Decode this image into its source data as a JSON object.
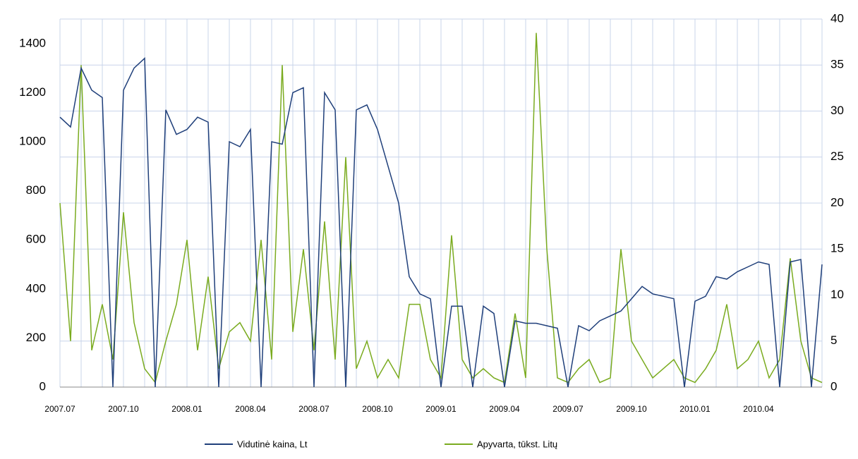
{
  "chart_data": {
    "type": "line",
    "x": [
      0,
      0.5,
      1,
      1.5,
      2,
      2.5,
      3,
      3.5,
      4,
      4.5,
      5,
      5.5,
      6,
      6.5,
      7,
      7.5,
      8,
      8.5,
      9,
      9.5,
      10,
      10.5,
      11,
      11.5,
      12,
      12.5,
      13,
      13.5,
      14,
      14.5,
      15,
      15.5,
      16,
      16.5,
      17,
      17.5,
      18,
      18.5,
      19,
      19.5,
      20,
      20.5,
      21,
      21.5,
      22,
      22.5,
      23,
      23.5,
      24,
      24.5,
      25,
      25.5,
      26,
      26.5,
      27,
      27.5,
      28,
      28.5,
      29,
      29.5,
      30,
      30.5,
      31,
      31.5,
      32,
      32.5,
      33,
      33.5,
      34,
      34.5,
      35,
      35.5,
      36
    ],
    "series": [
      {
        "name": "Vidutinė kaina, Lt",
        "color": "#1f3f7a",
        "axis": "y",
        "values": [
          1100,
          1060,
          1300,
          1210,
          1180,
          0,
          1210,
          1300,
          1340,
          0,
          1130,
          1030,
          1050,
          1100,
          1080,
          0,
          1000,
          980,
          1050,
          0,
          1000,
          990,
          1200,
          1220,
          0,
          1200,
          1130,
          0,
          1130,
          1150,
          1050,
          900,
          750,
          450,
          380,
          360,
          0,
          330,
          330,
          0,
          330,
          300,
          0,
          270,
          260,
          260,
          250,
          240,
          0,
          250,
          230,
          270,
          290,
          310,
          360,
          410,
          380,
          370,
          360,
          0,
          350,
          370,
          450,
          440,
          470,
          490,
          510,
          500,
          0,
          510,
          520,
          0,
          500
        ]
      },
      {
        "name": "Apyvarta, tūkst. Litų",
        "color": "#7aab1f",
        "axis": "y2",
        "values": [
          20,
          5,
          35,
          4,
          9,
          3,
          19,
          7,
          2,
          0.5,
          5,
          9,
          16,
          4,
          12,
          2,
          6,
          7,
          5,
          16,
          3,
          35,
          6,
          15,
          4,
          18,
          3,
          25,
          2,
          5,
          1,
          3,
          1,
          9,
          9,
          3,
          1,
          16.5,
          3,
          1,
          2,
          1,
          0.5,
          8,
          1,
          38.5,
          15,
          1,
          0.5,
          2,
          3,
          0.5,
          1,
          15,
          5,
          3,
          1,
          2,
          3,
          1,
          0.5,
          2,
          4,
          9,
          2,
          3,
          5,
          1,
          3,
          14,
          5,
          1,
          0.5
        ]
      }
    ],
    "xlim": [
      0,
      36
    ],
    "xticks": [
      {
        "value": 0,
        "label": "2007.07"
      },
      {
        "value": 3,
        "label": "2007.10"
      },
      {
        "value": 6,
        "label": "2008.01"
      },
      {
        "value": 9,
        "label": "2008.04"
      },
      {
        "value": 12,
        "label": "2008.07"
      },
      {
        "value": 15,
        "label": "2008.10"
      },
      {
        "value": 18,
        "label": "2009.01"
      },
      {
        "value": 21,
        "label": "2009.04"
      },
      {
        "value": 24,
        "label": "2009.07"
      },
      {
        "value": 27,
        "label": "2009.10"
      },
      {
        "value": 30,
        "label": "2010.01"
      },
      {
        "value": 33,
        "label": "2010.04"
      }
    ],
    "xminorticks": [
      1,
      2,
      4,
      5,
      7,
      8,
      10,
      11,
      13,
      14,
      16,
      17,
      19,
      20,
      22,
      23,
      25,
      26,
      28,
      29,
      31,
      32,
      34,
      35,
      36
    ],
    "ylim": [
      0,
      1500
    ],
    "yticks": [
      0,
      200,
      400,
      600,
      800,
      1000,
      1200,
      1400
    ],
    "y2lim": [
      0,
      40
    ],
    "y2ticks": [
      0,
      5,
      10,
      15,
      20,
      25,
      30,
      35,
      40
    ],
    "grid": true,
    "legend": "bottom"
  }
}
